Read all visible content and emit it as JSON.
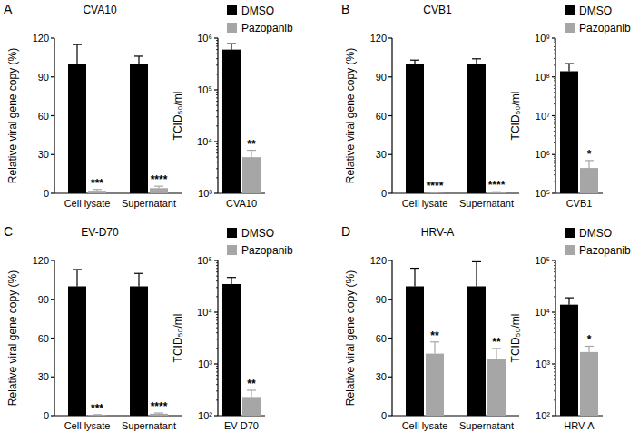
{
  "chart_data": [
    {
      "type": "bar",
      "panel": "A",
      "title": "CVA10",
      "y_label": "Relative viral gene copy (%)",
      "categories": [
        "Cell lysate",
        "Supernatant"
      ],
      "ylim": [
        0,
        120
      ],
      "yticks": [
        0,
        30,
        60,
        90,
        120
      ],
      "series": [
        {
          "color": "#000000",
          "values": [
            100,
            100
          ],
          "errors": [
            15,
            6
          ]
        },
        {
          "color": "#a6a6a6",
          "values": [
            2,
            4
          ],
          "errors": [
            1,
            1.5
          ],
          "significance": [
            "***",
            "****"
          ]
        }
      ]
    },
    {
      "type": "bar",
      "log": "y",
      "legend": "top-right",
      "y_label": "TCID₅₀/ml",
      "categories": [
        "CVA10"
      ],
      "ylim": [
        1000,
        1000000
      ],
      "yticks": [
        {
          "value": 1000,
          "label": "10³"
        },
        {
          "value": 10000,
          "label": "10⁴"
        },
        {
          "value": 100000,
          "label": "10⁵"
        },
        {
          "value": 1000000,
          "label": "10⁶"
        }
      ],
      "series": [
        {
          "name": "DMSO",
          "color": "#000000",
          "values": [
            600000
          ],
          "errors": [
            180000
          ]
        },
        {
          "name": "Pazopanib",
          "color": "#a6a6a6",
          "values": [
            5000
          ],
          "errors": [
            1800
          ],
          "significance": [
            "**"
          ]
        }
      ]
    },
    {
      "type": "bar",
      "panel": "B",
      "title": "CVB1",
      "y_label": "Relative viral gene copy (%)",
      "categories": [
        "Cell lysate",
        "Supernatant"
      ],
      "ylim": [
        0,
        120
      ],
      "yticks": [
        0,
        30,
        60,
        90,
        120
      ],
      "series": [
        {
          "color": "#000000",
          "values": [
            100,
            100
          ],
          "errors": [
            3,
            4
          ]
        },
        {
          "color": "#a6a6a6",
          "values": [
            0.3,
            0.8
          ],
          "errors": [
            0.2,
            0.4
          ],
          "significance": [
            "****",
            "****"
          ]
        }
      ]
    },
    {
      "type": "bar",
      "log": "y",
      "legend": "top-right",
      "y_label": "TCID₅₀/ml",
      "categories": [
        "CVB1"
      ],
      "ylim": [
        100000,
        1000000000
      ],
      "yticks": [
        {
          "value": 100000,
          "label": "10⁵"
        },
        {
          "value": 1000000,
          "label": "10⁶"
        },
        {
          "value": 10000000,
          "label": "10⁷"
        },
        {
          "value": 100000000,
          "label": "10⁸"
        },
        {
          "value": 1000000000,
          "label": "10⁹"
        }
      ],
      "series": [
        {
          "name": "DMSO",
          "color": "#000000",
          "values": [
            140000000
          ],
          "errors": [
            80000000
          ]
        },
        {
          "name": "Pazopanib",
          "color": "#a6a6a6",
          "values": [
            450000
          ],
          "errors": [
            250000
          ],
          "significance": [
            "*"
          ]
        }
      ]
    },
    {
      "type": "bar",
      "panel": "C",
      "title": "EV-D70",
      "y_label": "Relative viral gene copy (%)",
      "categories": [
        "Cell lysate",
        "Supernatant"
      ],
      "ylim": [
        0,
        120
      ],
      "yticks": [
        0,
        30,
        60,
        90,
        120
      ],
      "series": [
        {
          "color": "#000000",
          "values": [
            100,
            100
          ],
          "errors": [
            13,
            10
          ]
        },
        {
          "color": "#a6a6a6",
          "values": [
            0.5,
            1.5
          ],
          "errors": [
            0.3,
            0.6
          ],
          "significance": [
            "***",
            "****"
          ]
        }
      ]
    },
    {
      "type": "bar",
      "log": "y",
      "legend": "top-right",
      "y_label": "TCID₅₀/ml",
      "categories": [
        "EV-D70"
      ],
      "ylim": [
        100,
        100000
      ],
      "yticks": [
        {
          "value": 100,
          "label": "10²"
        },
        {
          "value": 1000,
          "label": "10³"
        },
        {
          "value": 10000,
          "label": "10⁴"
        },
        {
          "value": 100000,
          "label": "10⁵"
        }
      ],
      "series": [
        {
          "name": "DMSO",
          "color": "#000000",
          "values": [
            35000
          ],
          "errors": [
            12000
          ]
        },
        {
          "name": "Pazopanib",
          "color": "#a6a6a6",
          "values": [
            230
          ],
          "errors": [
            80
          ],
          "significance": [
            "**"
          ]
        }
      ]
    },
    {
      "type": "bar",
      "panel": "D",
      "title": "HRV-A",
      "y_label": "Relative viral gene copy (%)",
      "categories": [
        "Cell lysate",
        "Supernatant"
      ],
      "ylim": [
        0,
        120
      ],
      "yticks": [
        0,
        30,
        60,
        90,
        120
      ],
      "series": [
        {
          "color": "#000000",
          "values": [
            100,
            100
          ],
          "errors": [
            14,
            19
          ]
        },
        {
          "color": "#a6a6a6",
          "values": [
            48,
            44
          ],
          "errors": [
            9,
            8
          ],
          "significance": [
            "**",
            "**"
          ]
        }
      ]
    },
    {
      "type": "bar",
      "log": "y",
      "legend": "top-right",
      "y_label": "TCID₅₀/ml",
      "categories": [
        "HRV-A"
      ],
      "ylim": [
        100,
        100000
      ],
      "yticks": [
        {
          "value": 100,
          "label": "10²"
        },
        {
          "value": 1000,
          "label": "10³"
        },
        {
          "value": 10000,
          "label": "10⁴"
        },
        {
          "value": 100000,
          "label": "10⁵"
        }
      ],
      "series": [
        {
          "name": "DMSO",
          "color": "#000000",
          "values": [
            14000
          ],
          "errors": [
            5000
          ]
        },
        {
          "name": "Pazopanib",
          "color": "#a6a6a6",
          "values": [
            1700
          ],
          "errors": [
            500
          ],
          "significance": [
            "*"
          ]
        }
      ]
    }
  ]
}
